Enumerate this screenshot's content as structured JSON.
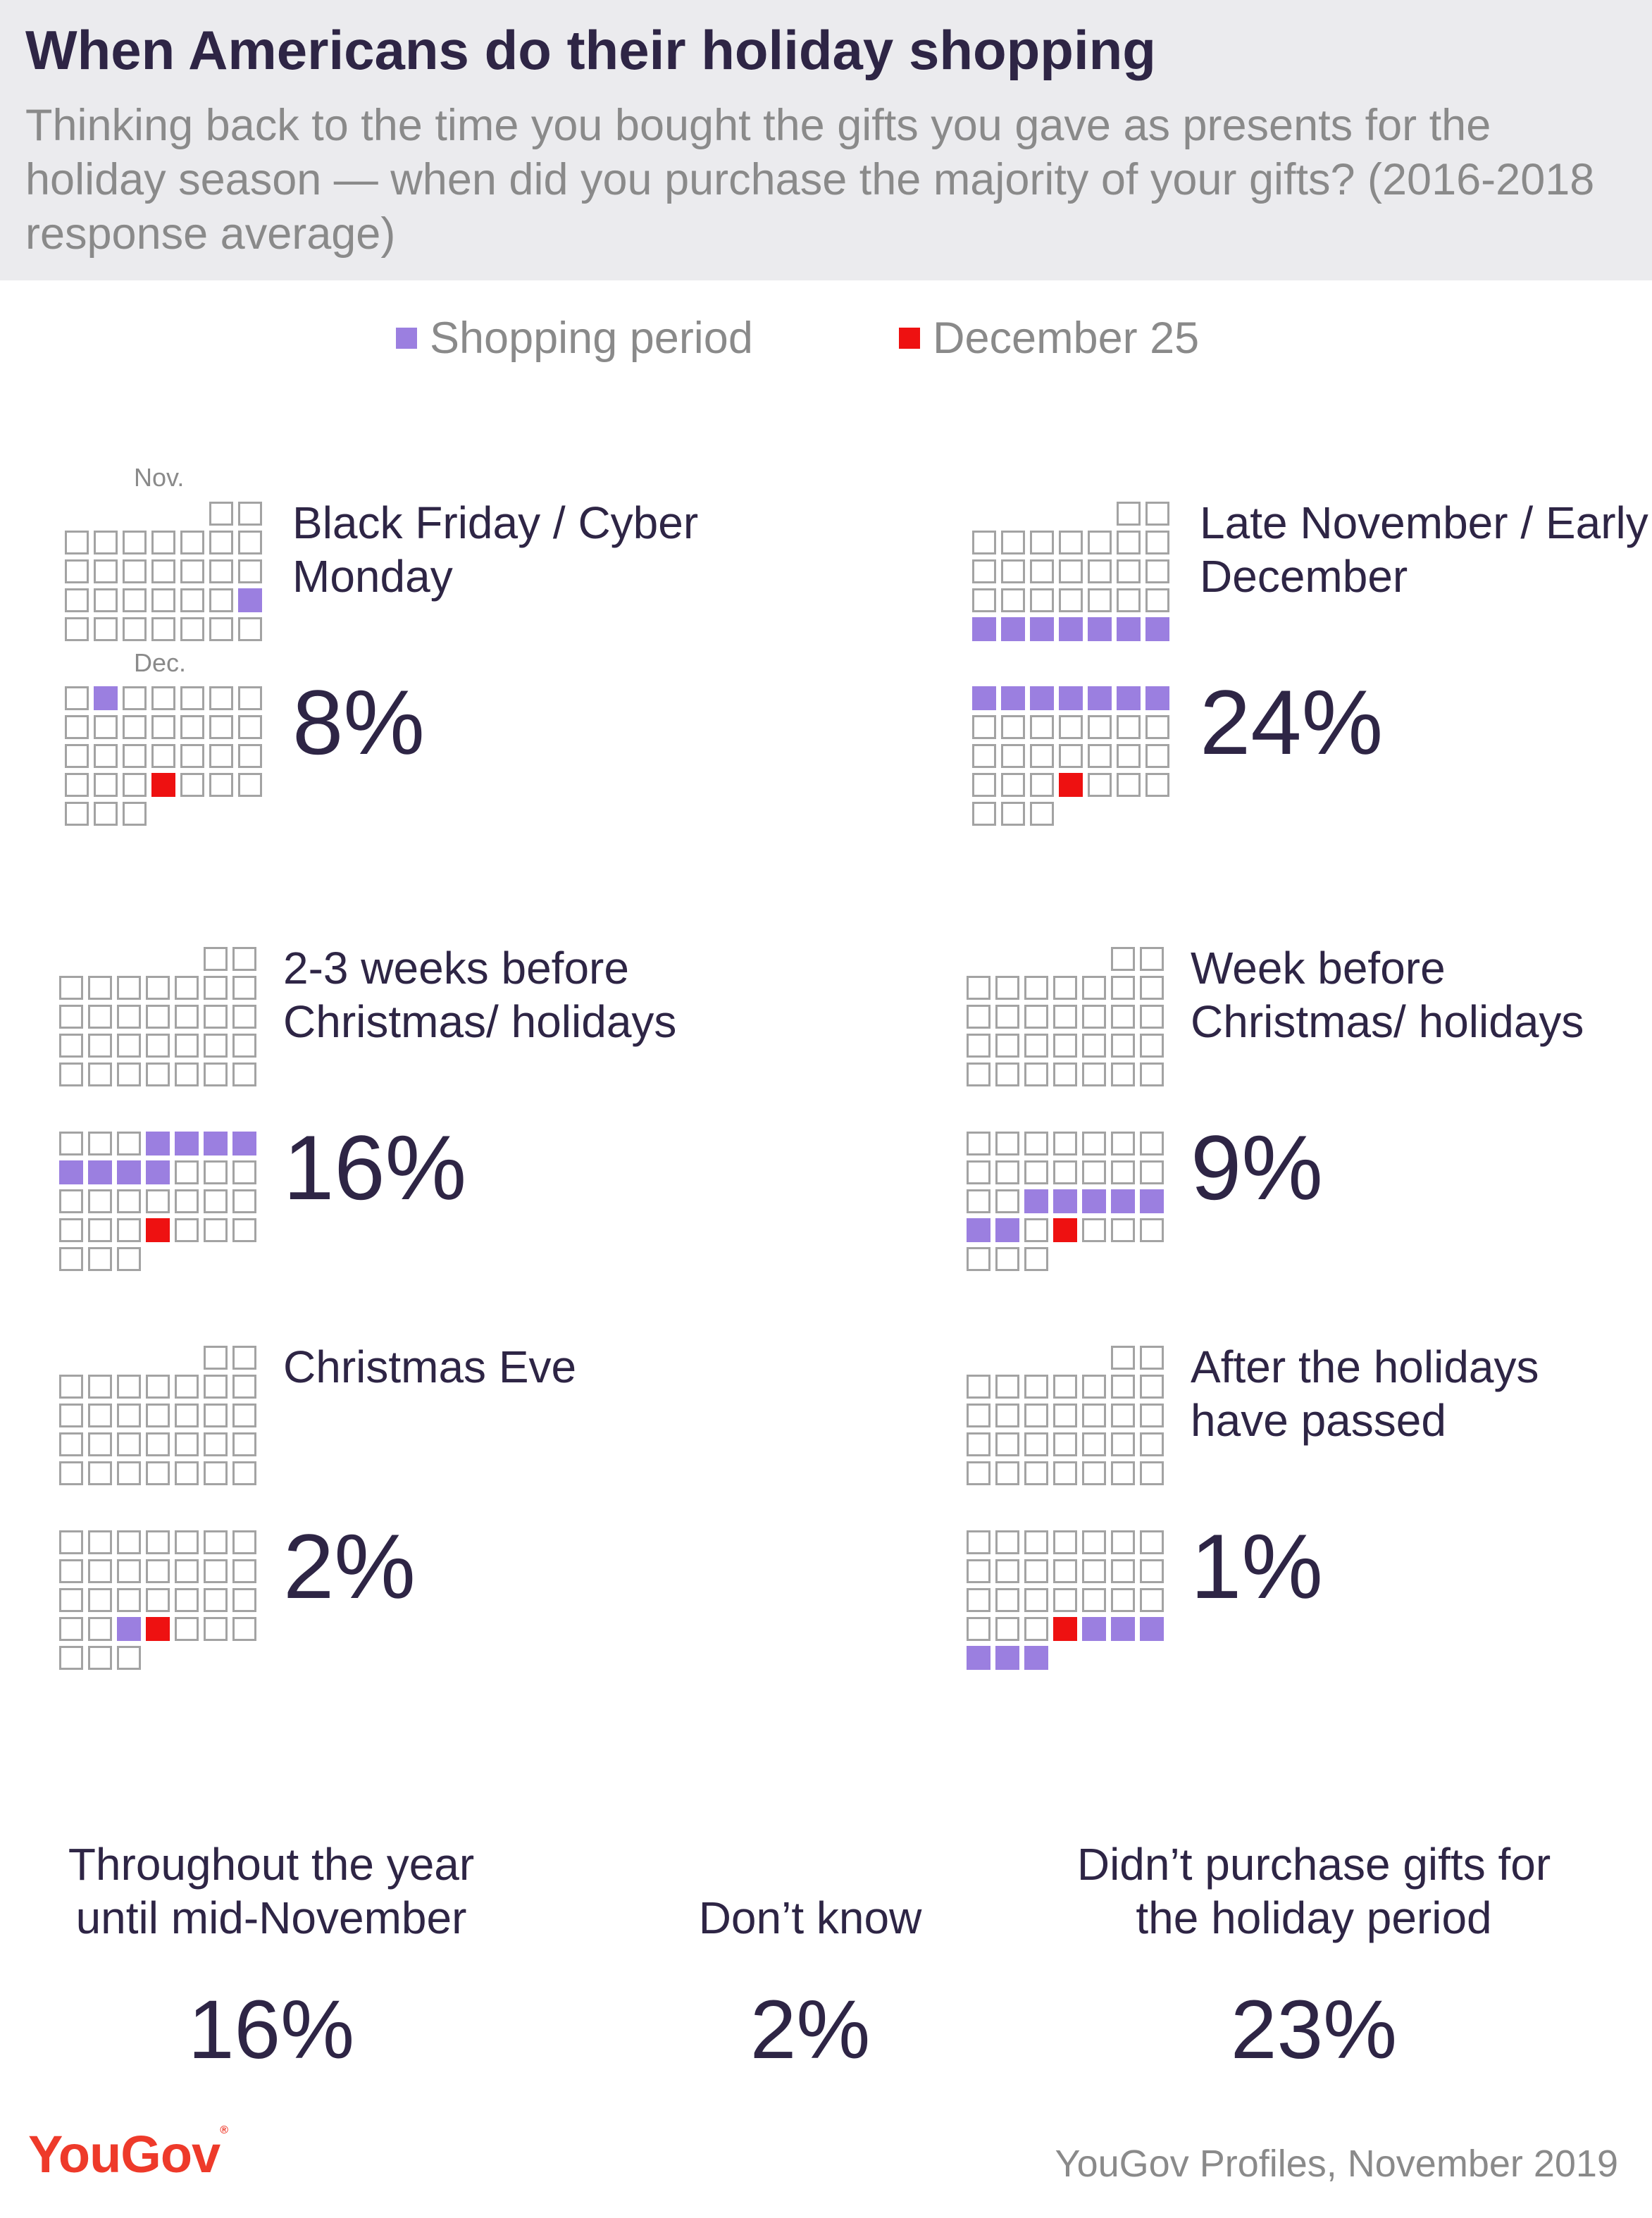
{
  "title": "When Americans do their holiday shopping",
  "subtitle": "Thinking back to the time you bought the gifts you gave as presents for the holiday season — when did you purchase the majority of your gifts? (2016-2018 response average)",
  "legend": {
    "shopping_period": "Shopping period",
    "december_25": "December 25"
  },
  "month_labels": {
    "nov": "Nov.",
    "dec": "Dec."
  },
  "colors": {
    "shopping": "#9b7fe0",
    "dec25": "#ee1111",
    "empty_stroke": "#a3a3a3",
    "title": "#2e2545",
    "brand": "#ee3a2a"
  },
  "chart_data": {
    "type": "calendar-grid",
    "title": "When Americans do their holiday shopping",
    "calendar": {
      "november_days": 30,
      "november_first_weekday": 5,
      "december_days": 31,
      "december_first_weekday": 0,
      "december_25_day": 25
    },
    "panels": [
      {
        "label": "Black Friday / Cyber Monday",
        "value": "8%",
        "percent": 8,
        "highlight": {
          "nov": [
            23
          ],
          "dec": [
            2
          ]
        },
        "show_month_labels": true
      },
      {
        "label": "Late November / Early December",
        "value": "24%",
        "percent": 24,
        "highlight": {
          "nov": [
            24,
            25,
            26,
            27,
            28,
            29,
            30
          ],
          "dec": [
            1,
            2,
            3,
            4,
            5,
            6,
            7
          ]
        },
        "show_month_labels": false
      },
      {
        "label": "2-3 weeks before Christmas/ holidays",
        "value": "16%",
        "percent": 16,
        "highlight": {
          "nov": [],
          "dec": [
            4,
            5,
            6,
            7,
            8,
            9,
            10,
            11
          ]
        },
        "show_month_labels": false
      },
      {
        "label": "Week before Christmas/ holidays",
        "value": "9%",
        "percent": 9,
        "highlight": {
          "nov": [],
          "dec": [
            17,
            18,
            19,
            20,
            21,
            22,
            23
          ]
        },
        "show_month_labels": false
      },
      {
        "label": "Christmas Eve",
        "value": "2%",
        "percent": 2,
        "highlight": {
          "nov": [],
          "dec": [
            24
          ]
        },
        "show_month_labels": false
      },
      {
        "label": "After the holidays have passed",
        "value": "1%",
        "percent": 1,
        "highlight": {
          "nov": [],
          "dec": [
            26,
            27,
            28,
            29,
            30,
            31
          ]
        },
        "show_month_labels": false
      }
    ],
    "other_responses": [
      {
        "label": "Throughout the year until mid-November",
        "value": "16%",
        "percent": 16
      },
      {
        "label": "Don’t know",
        "value": "2%",
        "percent": 2
      },
      {
        "label": "Didn’t purchase gifts for the holiday period",
        "value": "23%",
        "percent": 23
      }
    ]
  },
  "footer": {
    "logo": "YouGov",
    "source": "YouGov Profiles, November 2019"
  }
}
